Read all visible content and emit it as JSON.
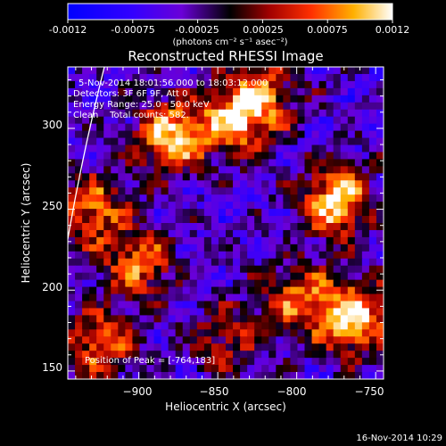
{
  "colorbar": {
    "ticks": [
      "-0.0012",
      "-0.00075",
      "-0.00025",
      "0.00025",
      "0.00075",
      "0.0012"
    ],
    "unit_label": "(photons cm⁻² s⁻¹ asec⁻²)"
  },
  "chart_data": {
    "type": "heatmap",
    "title": "Reconstructed RHESSI Image",
    "xlabel": "Heliocentric X (arcsec)",
    "ylabel": "Heliocentric Y (arcsec)",
    "xlim": [
      -945,
      -745
    ],
    "ylim": [
      145,
      338
    ],
    "xticks": [
      -900,
      -850,
      -800,
      -750
    ],
    "yticks": [
      150,
      200,
      250,
      300
    ],
    "xtick_labels": [
      "−900",
      "−850",
      "−800",
      "−750"
    ],
    "ytick_labels": [
      "150",
      "200",
      "250",
      "300"
    ],
    "colorscale_range": [
      -0.0012,
      0.0012
    ],
    "peak_position": [
      -764,
      183
    ],
    "annotations": [
      "5-Nov-2014 18:01:56.000 to 18:03:12.000",
      "Detectors: 3F 6F 9F, Att 0",
      "Energy Range: 25.0 - 50.0 keV",
      "Clean    Total counts: 582.",
      "Position of Peak = [-764,183]"
    ],
    "bright_regions": [
      {
        "x": -880,
        "y": 295,
        "level": 0.9
      },
      {
        "x": -775,
        "y": 255,
        "level": 1.0
      },
      {
        "x": -840,
        "y": 305,
        "level": 0.85
      },
      {
        "x": -764,
        "y": 183,
        "level": 1.0
      },
      {
        "x": -930,
        "y": 250,
        "level": 0.75
      },
      {
        "x": -900,
        "y": 215,
        "level": 0.7
      },
      {
        "x": -925,
        "y": 165,
        "level": 0.7
      },
      {
        "x": -800,
        "y": 195,
        "level": 0.65
      },
      {
        "x": -820,
        "y": 320,
        "level": 0.6
      },
      {
        "x": -845,
        "y": 170,
        "level": 0.5
      }
    ]
  },
  "footer": {
    "date": "16-Nov-2014 10:29"
  }
}
